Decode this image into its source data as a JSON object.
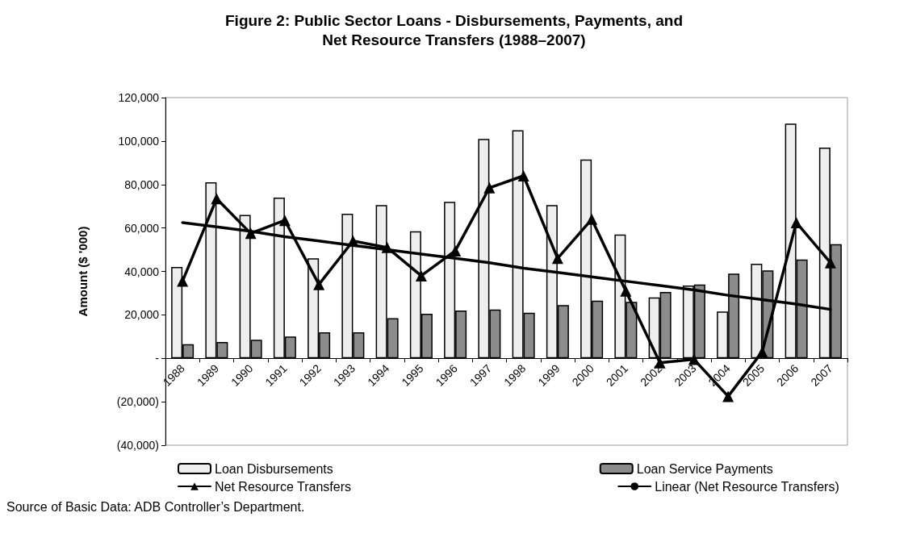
{
  "chart_data": {
    "type": "bar",
    "title": "Figure 2: Public Sector Loans - Disbursements, Payments, and\nNet Resource Transfers (1988–2007)",
    "ylabel": "Amount ($ '000)",
    "categories": [
      "1988",
      "1989",
      "1990",
      "1991",
      "1992",
      "1993",
      "1994",
      "1995",
      "1996",
      "1997",
      "1998",
      "1999",
      "2000",
      "2001",
      "2002",
      "2003",
      "2004",
      "2005",
      "2006",
      "2007"
    ],
    "series": [
      {
        "name": "Loan Disbursements",
        "color": "#eeeeee",
        "values": [
          42000,
          81000,
          66000,
          74000,
          46000,
          66500,
          70500,
          58500,
          72000,
          101000,
          105000,
          70500,
          91500,
          57000,
          28000,
          33500,
          21500,
          43500,
          108000,
          97000
        ]
      },
      {
        "name": "Loan Service Payments",
        "color": "#8c8c8c",
        "values": [
          6500,
          7500,
          8500,
          10000,
          12000,
          12000,
          18500,
          20500,
          22000,
          22500,
          21000,
          24500,
          26500,
          26000,
          30500,
          34000,
          39000,
          40500,
          45500,
          52500
        ]
      },
      {
        "name": "Net Resource Transfers",
        "type": "line",
        "color": "#000000",
        "marker": "triangle",
        "values": [
          35500,
          73500,
          57500,
          63500,
          34000,
          54000,
          51000,
          38000,
          49500,
          78500,
          84000,
          46000,
          64000,
          31000,
          -2000,
          -500,
          -17500,
          3000,
          62500,
          44000
        ]
      },
      {
        "name": "Linear (Net Resource Transfers)",
        "type": "line",
        "color": "#000000",
        "marker": "none",
        "values": [
          62500,
          60500,
          58500,
          56000,
          54000,
          52000,
          50000,
          48000,
          46000,
          44000,
          41500,
          39500,
          37500,
          35500,
          33500,
          31500,
          29000,
          27000,
          25000,
          22500
        ]
      }
    ],
    "ylim": [
      -40000,
      120000
    ],
    "yticks": [
      {
        "value": -40000,
        "label": "(40,000)"
      },
      {
        "value": -20000,
        "label": "(20,000)"
      },
      {
        "value": 0,
        "label": "-"
      },
      {
        "value": 20000,
        "label": "20,000"
      },
      {
        "value": 40000,
        "label": "40,000"
      },
      {
        "value": 60000,
        "label": "60,000"
      },
      {
        "value": 80000,
        "label": "80,000"
      },
      {
        "value": 100000,
        "label": "100,000"
      },
      {
        "value": 120000,
        "label": "120,000"
      }
    ],
    "grid": false,
    "legend": "bottom",
    "line_style": "solid",
    "annotations": [
      "Source of Basic Data: ADB Controller’s Department."
    ]
  }
}
